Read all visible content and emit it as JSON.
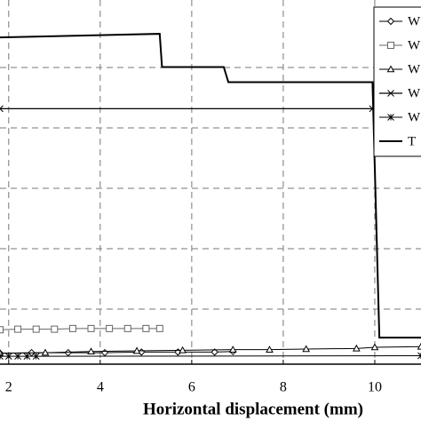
{
  "chart_data": {
    "type": "line",
    "x_label": "Horizontal displacement (mm)",
    "xlim": [
      1.81,
      11.01
    ],
    "xticks": [
      2,
      4,
      6,
      8,
      10
    ],
    "ylim": [
      0.09,
      6.12
    ],
    "grid": true,
    "legend": "upper right",
    "series": [
      {
        "name": "W",
        "color": "#000000",
        "marker": "diamond",
        "width": 1,
        "x": [
          1.81,
          2.5,
          3.3,
          4.1,
          4.9,
          5.7,
          6.5,
          6.9
        ],
        "values": [
          0.27,
          0.28,
          0.28,
          0.28,
          0.29,
          0.29,
          0.29,
          0.3
        ]
      },
      {
        "name": "W",
        "color": "#666666",
        "marker": "square",
        "width": 1,
        "x": [
          1.81,
          2.2,
          2.6,
          3.0,
          3.4,
          3.8,
          4.2,
          4.6,
          5.0,
          5.3
        ],
        "values": [
          0.66,
          0.67,
          0.67,
          0.67,
          0.68,
          0.68,
          0.68,
          0.68,
          0.68,
          0.68
        ]
      },
      {
        "name": "W",
        "color": "#000000",
        "marker": "triangle",
        "width": 1,
        "x": [
          1.81,
          2.8,
          3.8,
          4.8,
          5.8,
          6.9,
          7.7,
          8.5,
          9.6,
          10.0,
          11.01
        ],
        "values": [
          0.27,
          0.28,
          0.3,
          0.31,
          0.32,
          0.33,
          0.33,
          0.34,
          0.35,
          0.37,
          0.38
        ]
      },
      {
        "name": "W",
        "color": "#000000",
        "marker": "x",
        "width": 1.2,
        "x": [
          1.81,
          9.95
        ],
        "values": [
          4.32,
          4.32
        ]
      },
      {
        "name": "W",
        "color": "#000000",
        "marker": "star",
        "width": 1,
        "x": [
          1.81,
          2.0,
          2.2,
          2.4,
          2.6,
          11.01
        ],
        "values": [
          0.22,
          0.22,
          0.22,
          0.22,
          0.22,
          0.23
        ]
      },
      {
        "name": "T",
        "color": "#000000",
        "marker": "none",
        "width": 2,
        "x": [
          1.81,
          5.3,
          5.35,
          6.7,
          6.8,
          9.95,
          10.1,
          11.01
        ],
        "values": [
          5.5,
          5.56,
          5.01,
          5.01,
          4.76,
          4.76,
          0.53,
          0.53
        ]
      }
    ]
  }
}
